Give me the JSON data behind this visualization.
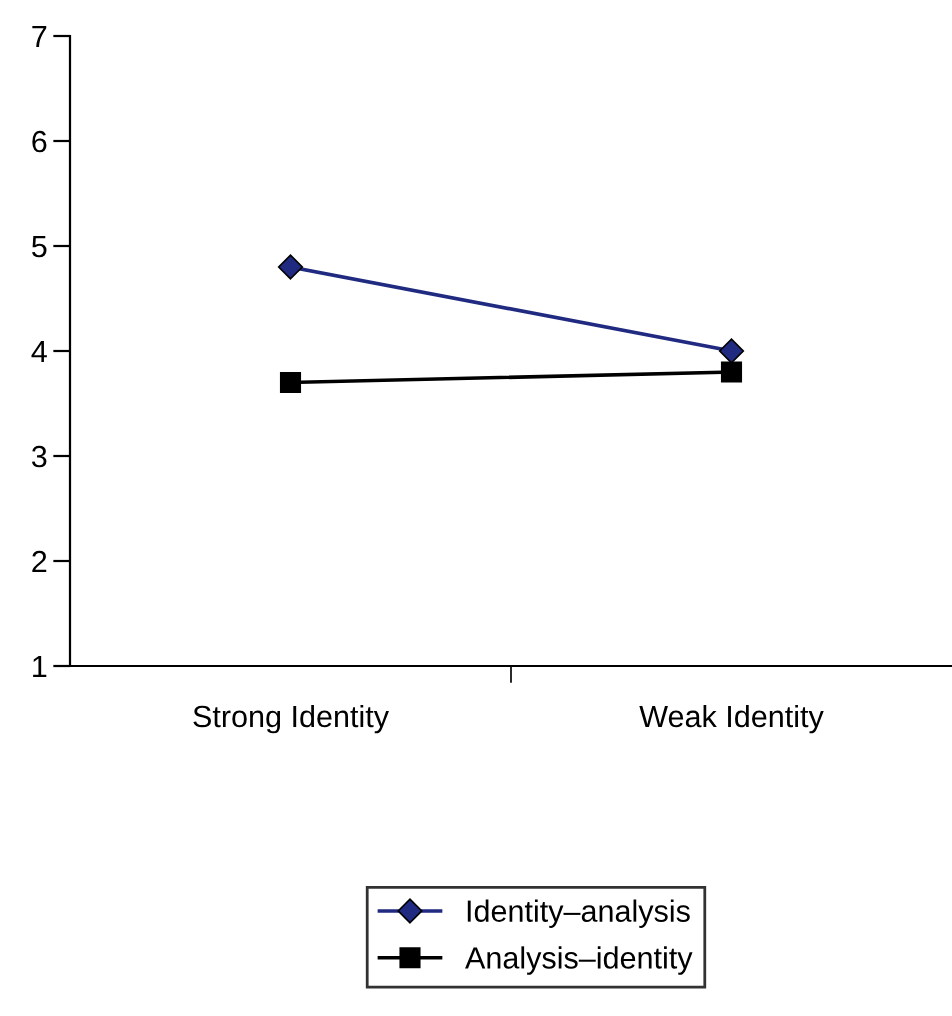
{
  "chart_data": {
    "type": "line",
    "categories": [
      "Strong Identity",
      "Weak Identity"
    ],
    "ylim": [
      1,
      7
    ],
    "yticks": [
      1,
      2,
      3,
      4,
      5,
      6,
      7
    ],
    "grid": false,
    "legend": "bottom",
    "line_style": "solid",
    "series": [
      {
        "name": "Identity–analysis",
        "color": "#1f2a80",
        "marker": "diamond",
        "values": [
          4.8,
          4.0
        ]
      },
      {
        "name": "Analysis–identity",
        "color": "#000000",
        "marker": "square",
        "values": [
          3.7,
          3.8
        ]
      }
    ]
  }
}
